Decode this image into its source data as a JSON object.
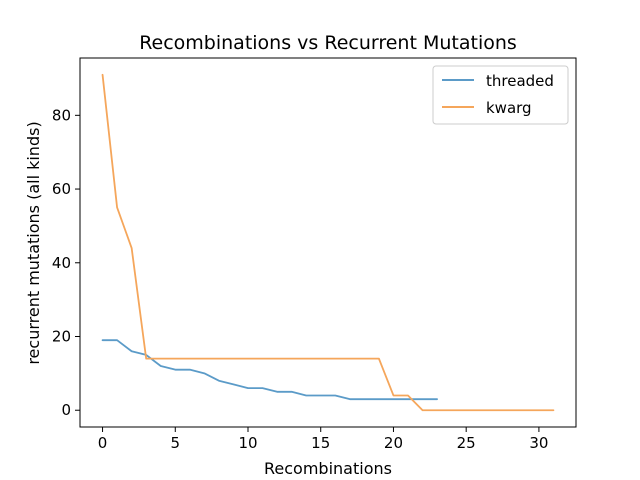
{
  "chart_data": {
    "type": "line",
    "title": "Recombinations vs Recurrent Mutations",
    "xlabel": "Recombinations",
    "ylabel": "recurrent mutations (all kinds)",
    "xlim": [
      -1.55,
      32.55
    ],
    "ylim": [
      -4.55,
      95.55
    ],
    "xticks": [
      0,
      5,
      10,
      15,
      20,
      25,
      30
    ],
    "yticks": [
      0,
      20,
      40,
      60,
      80
    ],
    "grid": false,
    "legend_position": "top-right",
    "series": [
      {
        "name": "threaded",
        "color": "#5b9bc8",
        "x": [
          0,
          1,
          2,
          3,
          4,
          5,
          6,
          7,
          8,
          9,
          10,
          11,
          12,
          13,
          14,
          15,
          16,
          17,
          18,
          19,
          20,
          21,
          22,
          23
        ],
        "y": [
          19,
          19,
          16,
          15,
          12,
          11,
          11,
          10,
          8,
          7,
          6,
          6,
          5,
          5,
          4,
          4,
          4,
          3,
          3,
          3,
          3,
          3,
          3,
          3
        ]
      },
      {
        "name": "kwarg",
        "color": "#f5a65b",
        "x": [
          0,
          1,
          2,
          3,
          4,
          5,
          6,
          7,
          8,
          9,
          10,
          11,
          12,
          13,
          14,
          15,
          16,
          17,
          18,
          19,
          20,
          21,
          22,
          23,
          24,
          25,
          26,
          27,
          28,
          29,
          30,
          31
        ],
        "y": [
          91,
          55,
          44,
          14,
          14,
          14,
          14,
          14,
          14,
          14,
          14,
          14,
          14,
          14,
          14,
          14,
          14,
          14,
          14,
          14,
          4,
          4,
          0,
          0,
          0,
          0,
          0,
          0,
          0,
          0,
          0,
          0
        ]
      }
    ]
  }
}
